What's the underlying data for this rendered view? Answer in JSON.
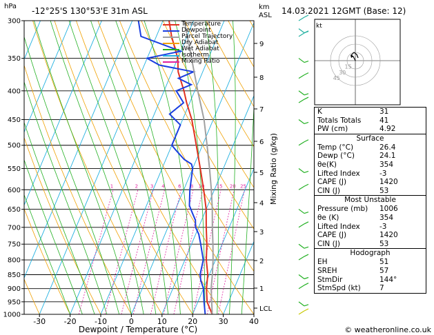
{
  "header": {
    "station": "-12°25'S 130°53'E 31m ASL",
    "datetime": "14.03.2021 12GMT (Base: 12)",
    "hpa_label": "hPa",
    "km_label": "km",
    "asl_label": "ASL",
    "credit": "© weatheronline.co.uk",
    "hodo_unit": "kt"
  },
  "legend": [
    {
      "label": "Temperature",
      "color": "#e03020"
    },
    {
      "label": "Dewpoint",
      "color": "#1a3ee0"
    },
    {
      "label": "Parcel Trajectory",
      "color": "#a0a0a0"
    },
    {
      "label": "Dry Adiabat",
      "color": "#f0a000"
    },
    {
      "label": "Wet Adiabat",
      "color": "#22b022"
    },
    {
      "label": "Isotherm",
      "color": "#20b0e0"
    },
    {
      "label": "Mixing Ratio",
      "color": "#e020a0"
    }
  ],
  "axes": {
    "xlabel": "Dewpoint / Temperature (°C)",
    "ylabel_right": "Mixing Ratio (g/kg)",
    "x_ticks": [
      "-30",
      "-20",
      "-10",
      "0",
      "10",
      "20",
      "30",
      "40"
    ],
    "p_ticks": [
      "300",
      "350",
      "400",
      "450",
      "500",
      "550",
      "600",
      "650",
      "700",
      "750",
      "800",
      "850",
      "900",
      "950",
      "1000"
    ],
    "km_ticks": [
      "9",
      "8",
      "7",
      "6",
      "5",
      "4",
      "3",
      "2",
      "1",
      "LCL"
    ],
    "mixing_ratio_labels": [
      "1",
      "2",
      "3",
      "4",
      "6",
      "8",
      "10",
      "15",
      "20",
      "25"
    ],
    "hodo_rings": [
      "15",
      "30",
      "45"
    ]
  },
  "indices": {
    "rows": [
      {
        "k": "K",
        "v": "31"
      },
      {
        "k": "Totals Totals",
        "v": "41"
      },
      {
        "k": "PW (cm)",
        "v": "4.92"
      }
    ]
  },
  "surface": {
    "title": "Surface",
    "rows": [
      {
        "k": "Temp (°C)",
        "v": "26.4"
      },
      {
        "k": "Dewp (°C)",
        "v": "24.1"
      },
      {
        "k": "θe(K)",
        "v": "354"
      },
      {
        "k": "Lifted Index",
        "v": "-3"
      },
      {
        "k": "CAPE (J)",
        "v": "1420"
      },
      {
        "k": "CIN (J)",
        "v": "53"
      }
    ]
  },
  "most_unstable": {
    "title": "Most Unstable",
    "rows": [
      {
        "k": "Pressure (mb)",
        "v": "1006"
      },
      {
        "k": "θe (K)",
        "v": "354"
      },
      {
        "k": "Lifted Index",
        "v": "-3"
      },
      {
        "k": "CAPE (J)",
        "v": "1420"
      },
      {
        "k": "CIN (J)",
        "v": "53"
      }
    ]
  },
  "hodograph": {
    "title": "Hodograph",
    "rows": [
      {
        "k": "EH",
        "v": "51"
      },
      {
        "k": "SREH",
        "v": "57"
      },
      {
        "k": "StmDir",
        "v": "144°"
      },
      {
        "k": "StmSpd (kt)",
        "v": "7"
      }
    ]
  },
  "chart_data": {
    "type": "line",
    "title": "",
    "xlabel": "Dewpoint / Temperature (°C)",
    "ylabel": "hPa",
    "xlim": [
      -35,
      40
    ],
    "ylim": [
      1000,
      300
    ],
    "y_scale": "log",
    "series": [
      {
        "name": "Temperature",
        "color": "#e03020",
        "p": [
          1000,
          950,
          900,
          850,
          800,
          750,
          700,
          650,
          600,
          550,
          500,
          450,
          420,
          400,
          370,
          350,
          320,
          300
        ],
        "t": [
          26.4,
          23,
          21,
          19.5,
          17,
          15,
          12.5,
          10,
          6.5,
          2.5,
          -2,
          -7,
          -11,
          -13.5,
          -18,
          -20,
          -25,
          -28
        ]
      },
      {
        "name": "Dewpoint",
        "color": "#1a3ee0",
        "p": [
          1000,
          950,
          900,
          870,
          850,
          800,
          750,
          720,
          700,
          680,
          660,
          640,
          600,
          550,
          540,
          530,
          510,
          500,
          460,
          440,
          420,
          400,
          390,
          380,
          370,
          360,
          350,
          340,
          320,
          300
        ],
        "t": [
          24.1,
          22,
          20,
          18,
          17,
          16,
          13,
          11,
          9,
          8,
          6,
          4,
          2,
          0,
          -1,
          -4,
          -8,
          -10,
          -10,
          -15,
          -12,
          -16,
          -12,
          -17,
          -13,
          -25,
          -30,
          -20,
          -35,
          -38
        ]
      },
      {
        "name": "Parcel Trajectory",
        "color": "#a0a0a0",
        "p": [
          1000,
          950,
          900,
          850,
          800,
          750,
          700,
          650,
          600,
          550,
          500,
          450,
          400,
          350,
          300
        ],
        "t": [
          26.4,
          24.5,
          22.5,
          21,
          19.2,
          17,
          14.5,
          12,
          9,
          5.5,
          1.5,
          -3,
          -9,
          -15.5,
          -23
        ]
      }
    ]
  }
}
